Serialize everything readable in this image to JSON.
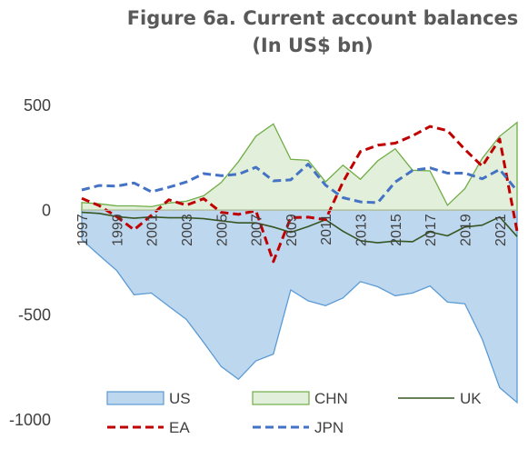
{
  "chart_data": {
    "type": "area",
    "title": "Figure 6a. Current account balances",
    "subtitle": "(In US$ bn)",
    "xlabel": "",
    "ylabel": "",
    "x": [
      1997,
      1998,
      1999,
      2000,
      2001,
      2002,
      2003,
      2004,
      2005,
      2006,
      2007,
      2008,
      2009,
      2010,
      2011,
      2012,
      2013,
      2014,
      2015,
      2016,
      2017,
      2018,
      2019,
      2020,
      2021,
      2022
    ],
    "x_tick_labels": [
      "1997",
      "1999",
      "2001",
      "2003",
      "2005",
      "2007",
      "2009",
      "2011",
      "2013",
      "2015",
      "2017",
      "2019",
      "2021"
    ],
    "y_tick_labels": [
      "500",
      "0",
      "-500",
      "-1000"
    ],
    "y_ticks": [
      500,
      0,
      -500,
      -1000
    ],
    "ylim": [
      -1000,
      500
    ],
    "grid": false,
    "legend_position": "bottom",
    "series": [
      {
        "name": "US",
        "style": "area",
        "fill": "#bdd7ee",
        "stroke": "#5b9bd5",
        "values": [
          -140,
          -215,
          -287,
          -403,
          -395,
          -458,
          -520,
          -630,
          -745,
          -806,
          -718,
          -686,
          -380,
          -432,
          -455,
          -418,
          -340,
          -365,
          -408,
          -395,
          -361,
          -438,
          -446,
          -616,
          -846,
          -917
        ]
      },
      {
        "name": "CHN",
        "style": "area",
        "fill": "#e2efda",
        "stroke": "#70ad47",
        "values": [
          37,
          31,
          21,
          21,
          17,
          35,
          43,
          69,
          132,
          232,
          353,
          412,
          243,
          238,
          136,
          215,
          148,
          236,
          293,
          191,
          188,
          24,
          103,
          248,
          353,
          419
        ]
      },
      {
        "name": "UK",
        "style": "line",
        "stroke": "#375623",
        "values": [
          -10,
          -15,
          -30,
          -38,
          -32,
          -36,
          -36,
          -40,
          -50,
          -60,
          -60,
          -80,
          -105,
          -78,
          -45,
          -100,
          -145,
          -155,
          -147,
          -150,
          -103,
          -122,
          -80,
          -71,
          -32,
          -125
        ]
      },
      {
        "name": "EA",
        "style": "dashed",
        "stroke": "#c00000",
        "values": [
          57,
          22,
          -30,
          -93,
          -24,
          50,
          24,
          55,
          -10,
          -20,
          -2,
          -245,
          -35,
          -33,
          -45,
          135,
          280,
          310,
          320,
          355,
          400,
          380,
          290,
          210,
          340,
          -100
        ]
      },
      {
        "name": "JPN",
        "style": "dashed",
        "stroke": "#4472c4",
        "values": [
          97,
          118,
          115,
          130,
          88,
          110,
          135,
          175,
          165,
          172,
          205,
          140,
          145,
          220,
          120,
          60,
          40,
          36,
          135,
          190,
          202,
          177,
          177,
          150,
          195,
          92
        ]
      }
    ]
  }
}
